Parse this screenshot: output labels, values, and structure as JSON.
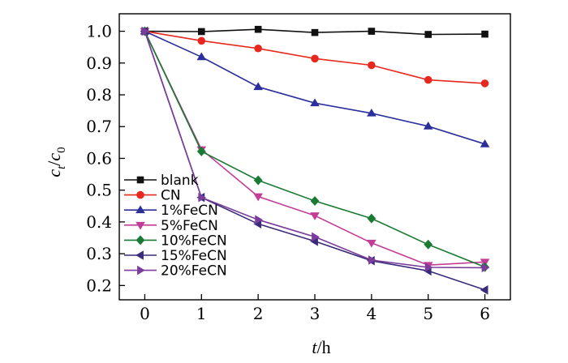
{
  "chart_data": {
    "type": "line",
    "title": "",
    "xlabel": "t/h",
    "ylabel": "ct/c0",
    "xlabel_parts": {
      "var": "t",
      "unit": "/h"
    },
    "ylabel_parts": {
      "c": "c",
      "sub_t": "t",
      "slash": "/",
      "c0": "c",
      "sub_0": "0"
    },
    "xlim": [
      -0.45,
      6.45
    ],
    "ylim": [
      0.155,
      1.055
    ],
    "xticks": [
      0,
      1,
      2,
      3,
      4,
      5,
      6
    ],
    "yticks": [
      0.2,
      0.3,
      0.4,
      0.5,
      0.6,
      0.7,
      0.8,
      0.9,
      1.0
    ],
    "xtick_labels": [
      "0",
      "1",
      "2",
      "3",
      "4",
      "5",
      "6"
    ],
    "ytick_labels": [
      "0.2",
      "0.3",
      "0.4",
      "0.5",
      "0.6",
      "0.7",
      "0.8",
      "0.9",
      "1.0"
    ],
    "x": [
      0,
      1,
      2,
      3,
      4,
      5,
      6
    ],
    "legend_position": "bottom-left",
    "series": [
      {
        "name": "blank",
        "color": "#111111",
        "marker": "square",
        "values": [
          1.0,
          0.999,
          1.006,
          0.996,
          1.0,
          0.99,
          0.991
        ]
      },
      {
        "name": "CN",
        "color": "#e8281e",
        "marker": "circle",
        "values": [
          1.0,
          0.97,
          0.946,
          0.914,
          0.893,
          0.847,
          0.836
        ]
      },
      {
        "name": "1%FeCN",
        "color": "#2b2f9c",
        "marker": "triangle-up",
        "values": [
          1.0,
          0.919,
          0.825,
          0.774,
          0.742,
          0.701,
          0.645
        ]
      },
      {
        "name": "5%FeCN",
        "color": "#c33d97",
        "marker": "triangle-down",
        "values": [
          1.0,
          0.628,
          0.48,
          0.42,
          0.334,
          0.264,
          0.274
        ]
      },
      {
        "name": "10%FeCN",
        "color": "#1a7a33",
        "marker": "diamond",
        "values": [
          1.0,
          0.622,
          0.531,
          0.466,
          0.411,
          0.329,
          0.258
        ]
      },
      {
        "name": "15%FeCN",
        "color": "#3a2a7a",
        "marker": "triangle-left",
        "values": [
          1.0,
          0.477,
          0.394,
          0.339,
          0.278,
          0.246,
          0.186
        ]
      },
      {
        "name": "20%FeCN",
        "color": "#7a3d9c",
        "marker": "triangle-right",
        "values": [
          1.0,
          0.477,
          0.407,
          0.353,
          0.28,
          0.257,
          0.256
        ]
      }
    ]
  }
}
